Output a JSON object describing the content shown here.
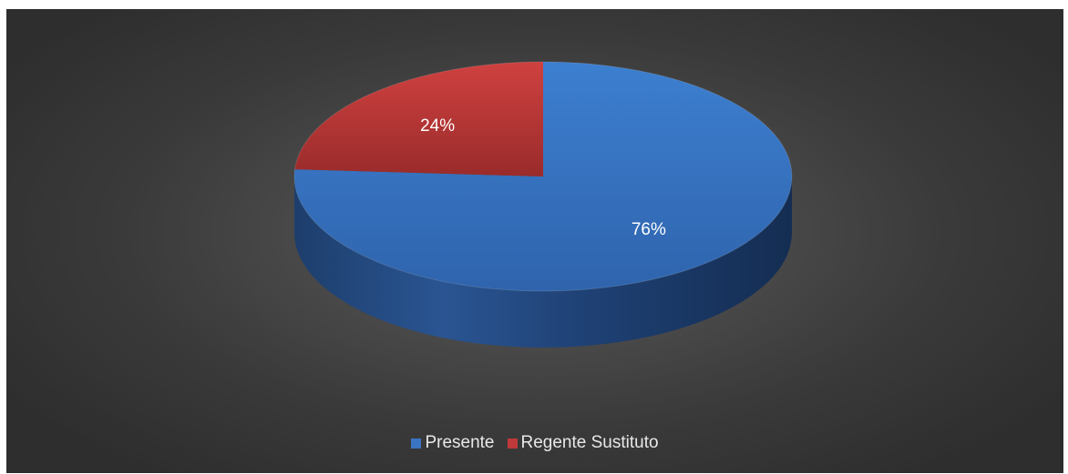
{
  "chart_data": {
    "type": "pie",
    "style": "3d",
    "categories": [
      "Presente",
      "Regente Sustituto"
    ],
    "values": [
      76,
      24
    ],
    "labels": [
      "76%",
      "24%"
    ],
    "colors": [
      "#3a74c2",
      "#c0393a"
    ],
    "legend_position": "bottom",
    "title": ""
  }
}
